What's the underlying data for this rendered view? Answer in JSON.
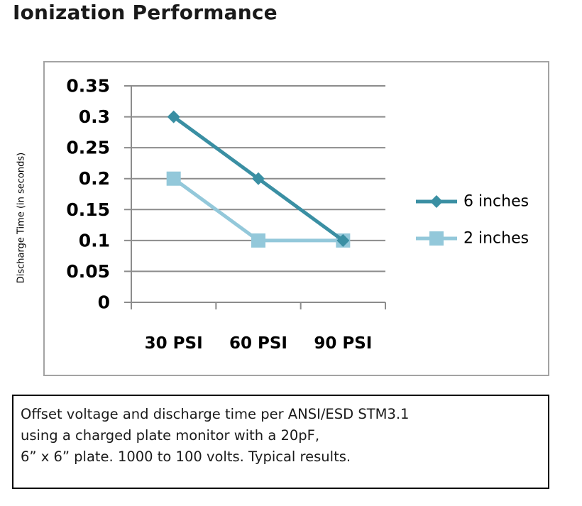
{
  "title": "Ionization Performance",
  "caption": [
    "Offset voltage and discharge time per ANSI/ESD STM3.1",
    "using a charged plate monitor with a 20pF,",
    "6” x 6” plate. 1000 to 100 volts. Typical results."
  ],
  "chart_data": {
    "type": "line",
    "title": "",
    "xlabel": "",
    "ylabel": "Discharge Time (in seconds)",
    "categories": [
      "30 PSI",
      "60 PSI",
      "90 PSI"
    ],
    "ylim": [
      0,
      0.35
    ],
    "yticks": [
      0,
      0.05,
      0.1,
      0.15,
      0.2,
      0.25,
      0.3,
      0.35
    ],
    "ytick_labels": [
      "0",
      "0.05",
      "0.1",
      "0.15",
      "0.2",
      "0.25",
      "0.3",
      "0.35"
    ],
    "grid": true,
    "legend_position": "right",
    "series": [
      {
        "name": "6 inches",
        "values": [
          0.3,
          0.2,
          0.1
        ],
        "color": "#3a8fa3",
        "marker": "diamond"
      },
      {
        "name": "2 inches",
        "values": [
          0.2,
          0.1,
          0.1
        ],
        "color": "#93c8da",
        "marker": "square"
      }
    ]
  }
}
